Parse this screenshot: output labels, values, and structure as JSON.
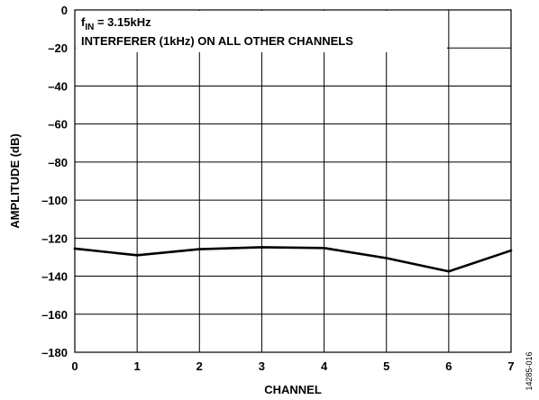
{
  "chart_data": {
    "type": "line",
    "title": "",
    "xlabel": "CHANNEL",
    "ylabel": "AMPLITUDE (dB)",
    "xlim": [
      0,
      7
    ],
    "ylim": [
      -180,
      0
    ],
    "x_ticks": [
      "0",
      "1",
      "2",
      "3",
      "4",
      "5",
      "6",
      "7"
    ],
    "y_ticks": [
      "0",
      "–20",
      "–40",
      "–60",
      "–80",
      "–100",
      "–120",
      "–140",
      "–160",
      "–180"
    ],
    "grid": true,
    "series": [
      {
        "x": [
          0,
          1,
          2,
          3,
          4,
          5,
          6,
          7
        ],
        "y": [
          -125.5,
          -129,
          -125.8,
          -124.8,
          -125.2,
          -130.5,
          -137.5,
          -126.5
        ]
      }
    ],
    "annotations": {
      "line1_main": "f",
      "line1_sub": "IN",
      "line1_rest": " = 3.15kHz",
      "line2": "INTERFERER (1kHz) ON ALL OTHER CHANNELS"
    }
  },
  "figure_id": "14285-016"
}
